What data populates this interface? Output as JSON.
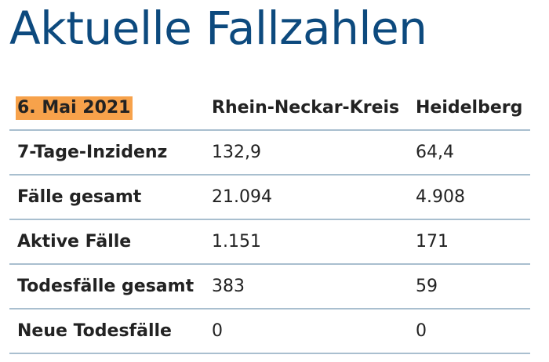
{
  "header": {
    "title": "Aktuelle Fallzahlen"
  },
  "table": {
    "columns": [
      "6. Mai 2021",
      "Rhein-Neckar-Kreis",
      "Heidelberg"
    ],
    "rows": [
      [
        "7-Tage-Inzidenz",
        "132,9",
        "64,4"
      ],
      [
        "Fälle gesamt",
        "21.094",
        "4.908"
      ],
      [
        "Aktive Fälle",
        "1.151",
        "171"
      ],
      [
        "Todesfälle gesamt",
        "383",
        "59"
      ],
      [
        "Neue Todesfälle",
        "0",
        "0"
      ]
    ]
  }
}
